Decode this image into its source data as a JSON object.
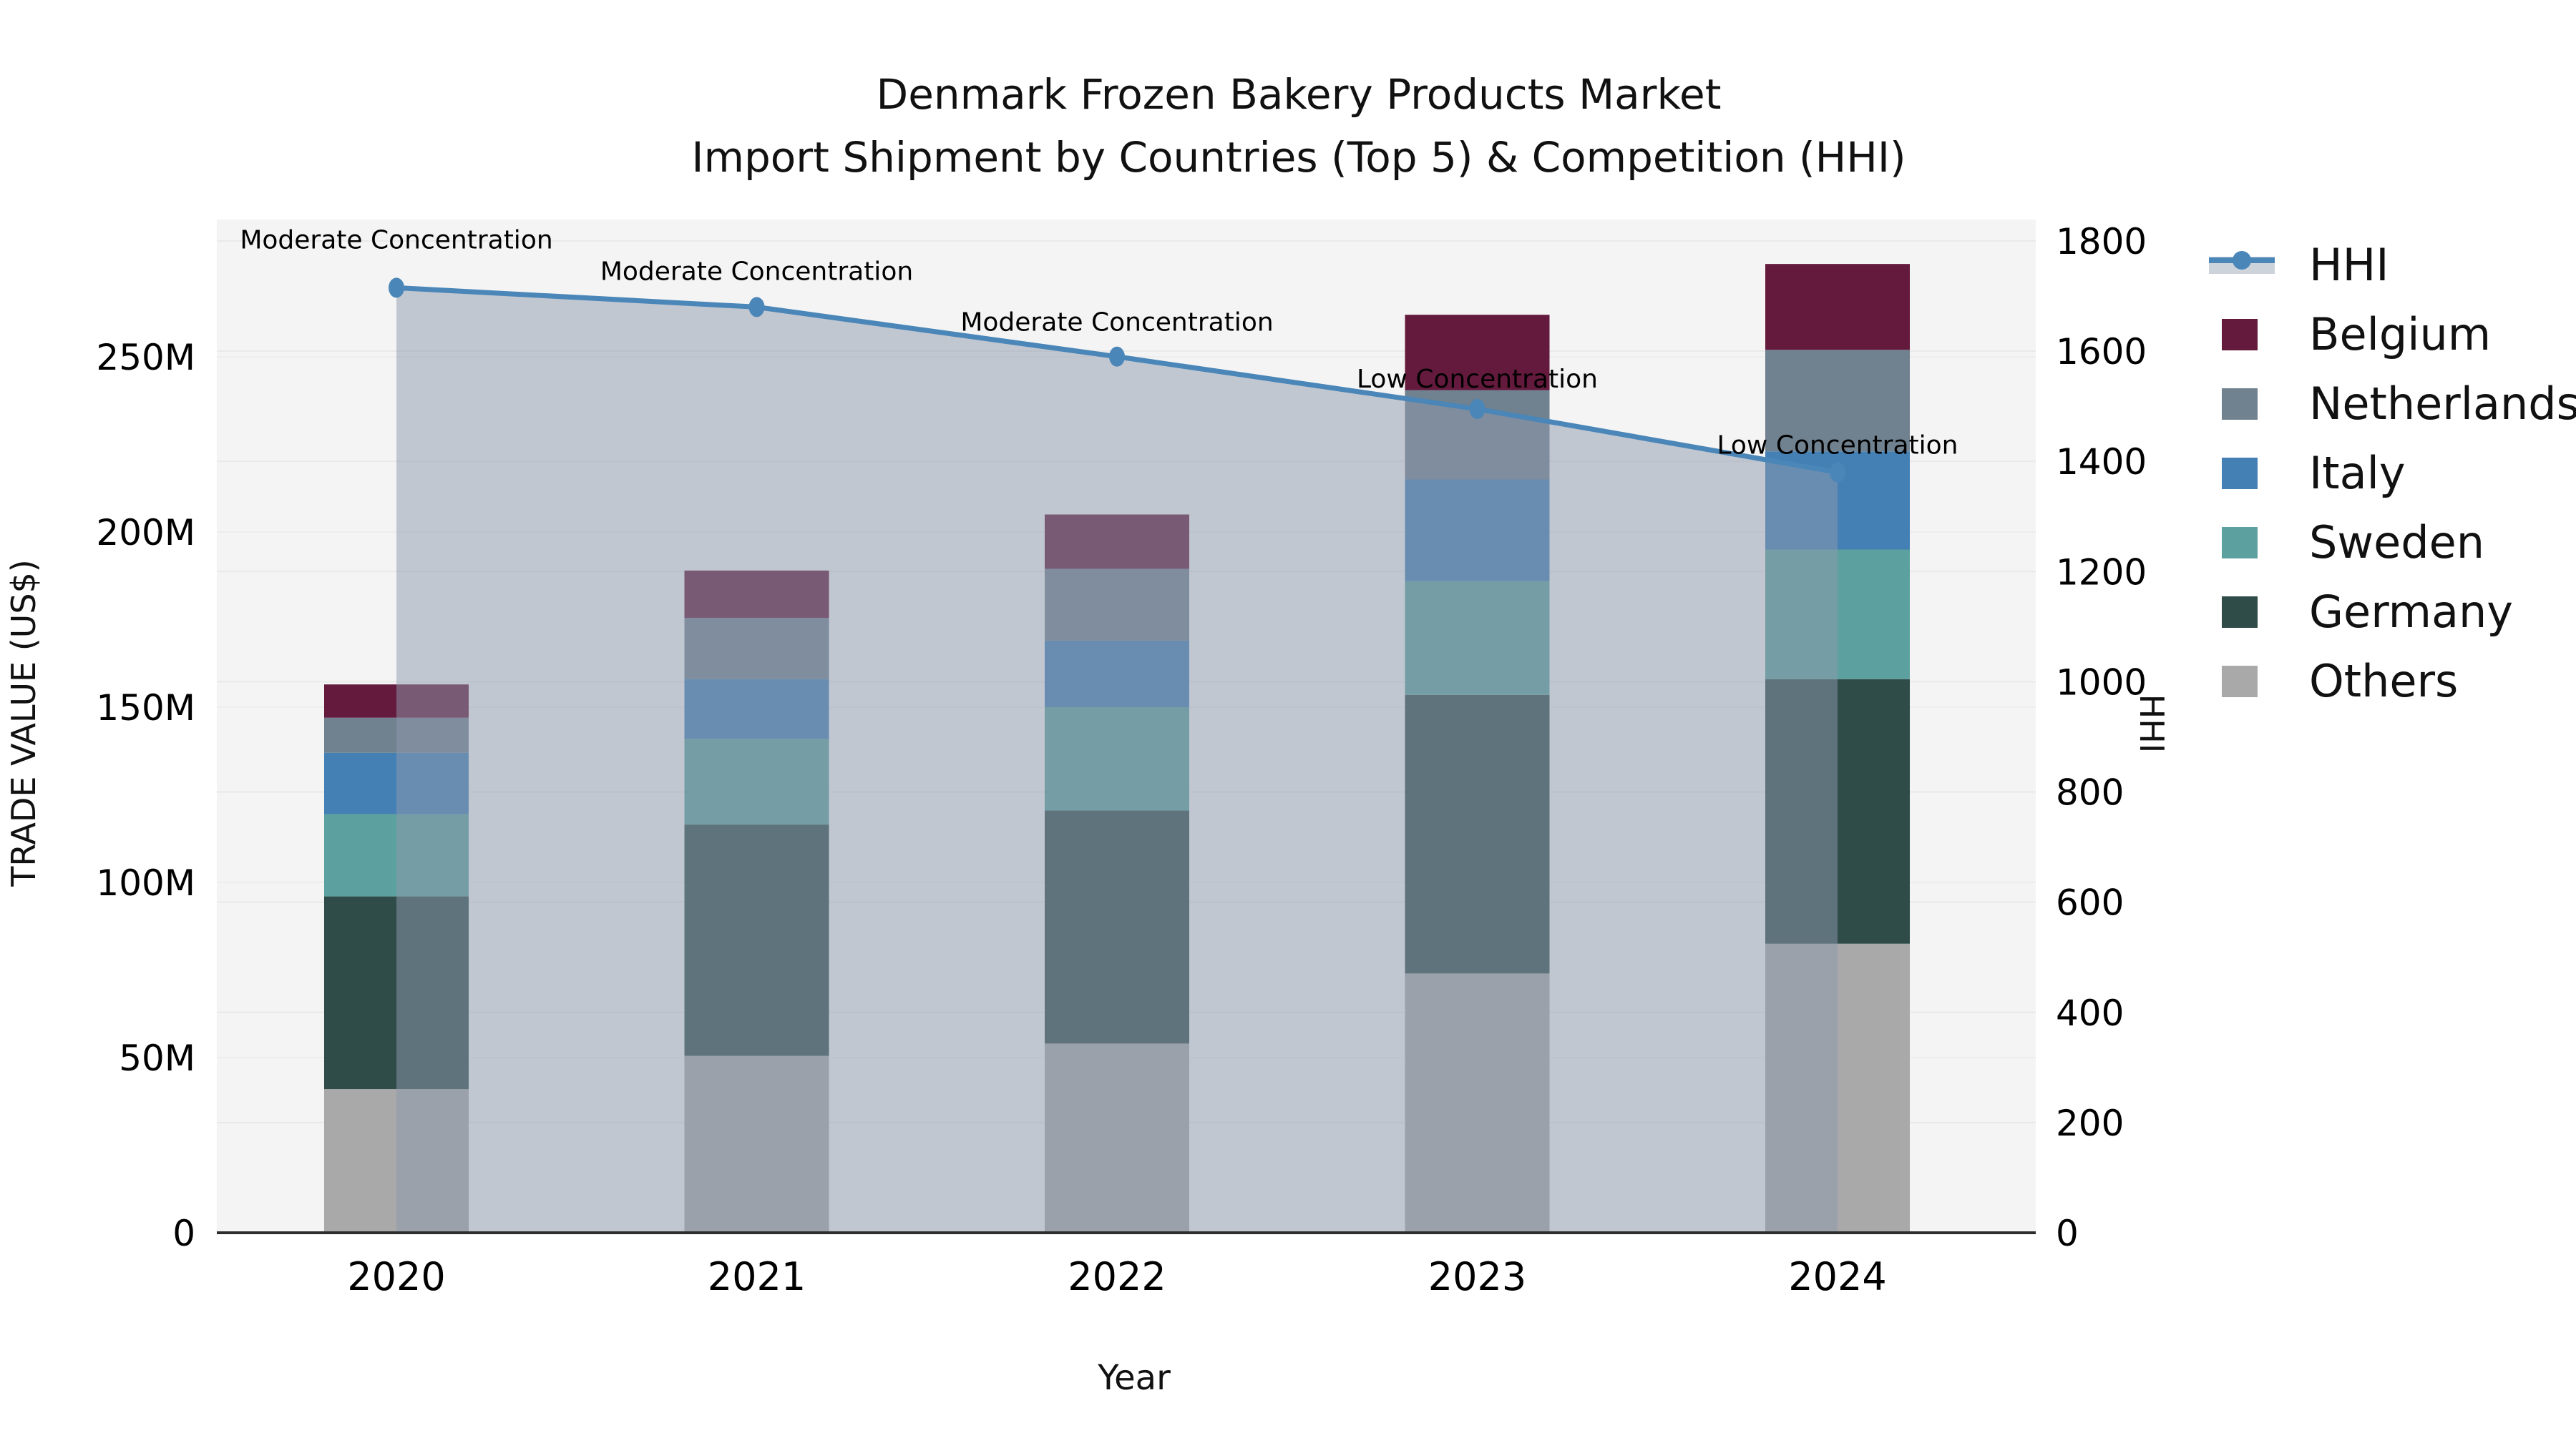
{
  "title": {
    "line1": "Denmark Frozen Bakery Products Market",
    "line2": "Import Shipment by Countries (Top 5) & Competition (HHI)"
  },
  "axes": {
    "x_label": "Year",
    "y_left_label": "TRADE VALUE (US$)",
    "y_right_label": "HHI",
    "y_left_ticks": [
      {
        "label": "0",
        "value": 0
      },
      {
        "label": "50M",
        "value": 50
      },
      {
        "label": "100M",
        "value": 100
      },
      {
        "label": "150M",
        "value": 150
      },
      {
        "label": "200M",
        "value": 200
      },
      {
        "label": "250M",
        "value": 250
      }
    ],
    "y_right_ticks": [
      {
        "label": "0",
        "value": 0
      },
      {
        "label": "200",
        "value": 200
      },
      {
        "label": "400",
        "value": 400
      },
      {
        "label": "600",
        "value": 600
      },
      {
        "label": "800",
        "value": 800
      },
      {
        "label": "1000",
        "value": 1000
      },
      {
        "label": "1200",
        "value": 1200
      },
      {
        "label": "1400",
        "value": 1400
      },
      {
        "label": "1600",
        "value": 1600
      },
      {
        "label": "1800",
        "value": 1800
      }
    ]
  },
  "chart_data": {
    "type": "stacked-bar+line",
    "title": "Denmark Frozen Bakery Products Market — Import Shipment by Countries (Top 5) & Competition (HHI)",
    "categories": [
      "2020",
      "2021",
      "2022",
      "2023",
      "2024"
    ],
    "value_unit": "US$ millions (left axis)",
    "ylim_left": [
      0,
      289
    ],
    "ylim_right": [
      0,
      1839
    ],
    "grid": true,
    "legend_position": "right",
    "series": [
      {
        "name": "Others",
        "color": "#a9a9a9",
        "values": [
          41.0,
          50.5,
          54.0,
          74.0,
          82.5
        ]
      },
      {
        "name": "Germany",
        "color": "#2f4c48",
        "values": [
          55.0,
          66.0,
          66.5,
          79.5,
          75.5
        ]
      },
      {
        "name": "Sweden",
        "color": "#5ca09f",
        "values": [
          23.5,
          24.5,
          29.5,
          32.5,
          37.0
        ]
      },
      {
        "name": "Italy",
        "color": "#4480b4",
        "values": [
          17.5,
          17.0,
          19.0,
          29.0,
          28.0
        ]
      },
      {
        "name": "Netherlands",
        "color": "#70818f",
        "values": [
          10.0,
          17.5,
          20.5,
          25.5,
          29.0
        ]
      },
      {
        "name": "Belgium",
        "color": "#641a3d",
        "values": [
          9.5,
          13.5,
          15.5,
          21.5,
          24.5
        ]
      }
    ],
    "line_series": {
      "name": "HHI",
      "axis": "right",
      "color": "#4a86b8",
      "area_fill_color": "#8d9aad",
      "area_fill_opacity": 0.5,
      "values": [
        1715,
        1680,
        1590,
        1495,
        1380
      ]
    },
    "annotations": [
      {
        "category": "2020",
        "text": "Moderate Concentration"
      },
      {
        "category": "2021",
        "text": "Moderate Concentration"
      },
      {
        "category": "2022",
        "text": "Moderate Concentration"
      },
      {
        "category": "2023",
        "text": "Low Concentration"
      },
      {
        "category": "2024",
        "text": "Low Concentration"
      }
    ]
  },
  "legend": {
    "items": [
      {
        "label": "HHI",
        "type": "line"
      },
      {
        "label": "Belgium",
        "type": "patch",
        "color": "#641a3d"
      },
      {
        "label": "Netherlands",
        "type": "patch",
        "color": "#70818f"
      },
      {
        "label": "Italy",
        "type": "patch",
        "color": "#4480b4"
      },
      {
        "label": "Sweden",
        "type": "patch",
        "color": "#5ca09f"
      },
      {
        "label": "Germany",
        "type": "patch",
        "color": "#2f4c48"
      },
      {
        "label": "Others",
        "type": "patch",
        "color": "#a9a9a9"
      }
    ]
  },
  "colors": {
    "plot_background": "#f4f4f4",
    "figure_background": "#ffffff",
    "gridline": "#e9e9e9",
    "axis_spine": "#2d2d2d",
    "hhi_line": "#4a86b8"
  }
}
